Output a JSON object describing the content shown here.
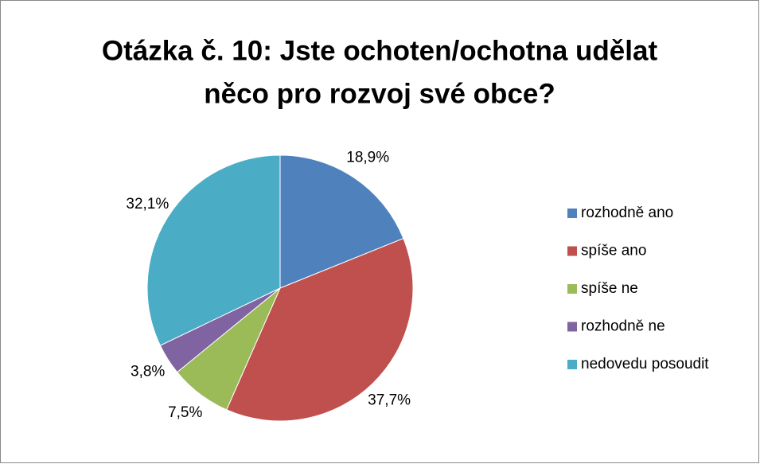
{
  "chart_data": {
    "type": "pie",
    "title": [
      "Otázka č. 10: Jste ochoten/ochotna udělat",
      "něco pro rozvoj své obce?"
    ],
    "categories": [
      "rozhodně ano",
      "spíše ano",
      "spíše ne",
      "rozhodně ne",
      "nedovedu posoudit"
    ],
    "values": [
      18.9,
      37.7,
      7.5,
      3.8,
      32.1
    ],
    "value_labels": [
      "18,9%",
      "37,7%",
      "7,5%",
      "3,8%",
      "32,1%"
    ],
    "colors": [
      "#4f81bd",
      "#c0504d",
      "#9bbb59",
      "#8064a2",
      "#4bacc6"
    ],
    "legend": "right"
  }
}
